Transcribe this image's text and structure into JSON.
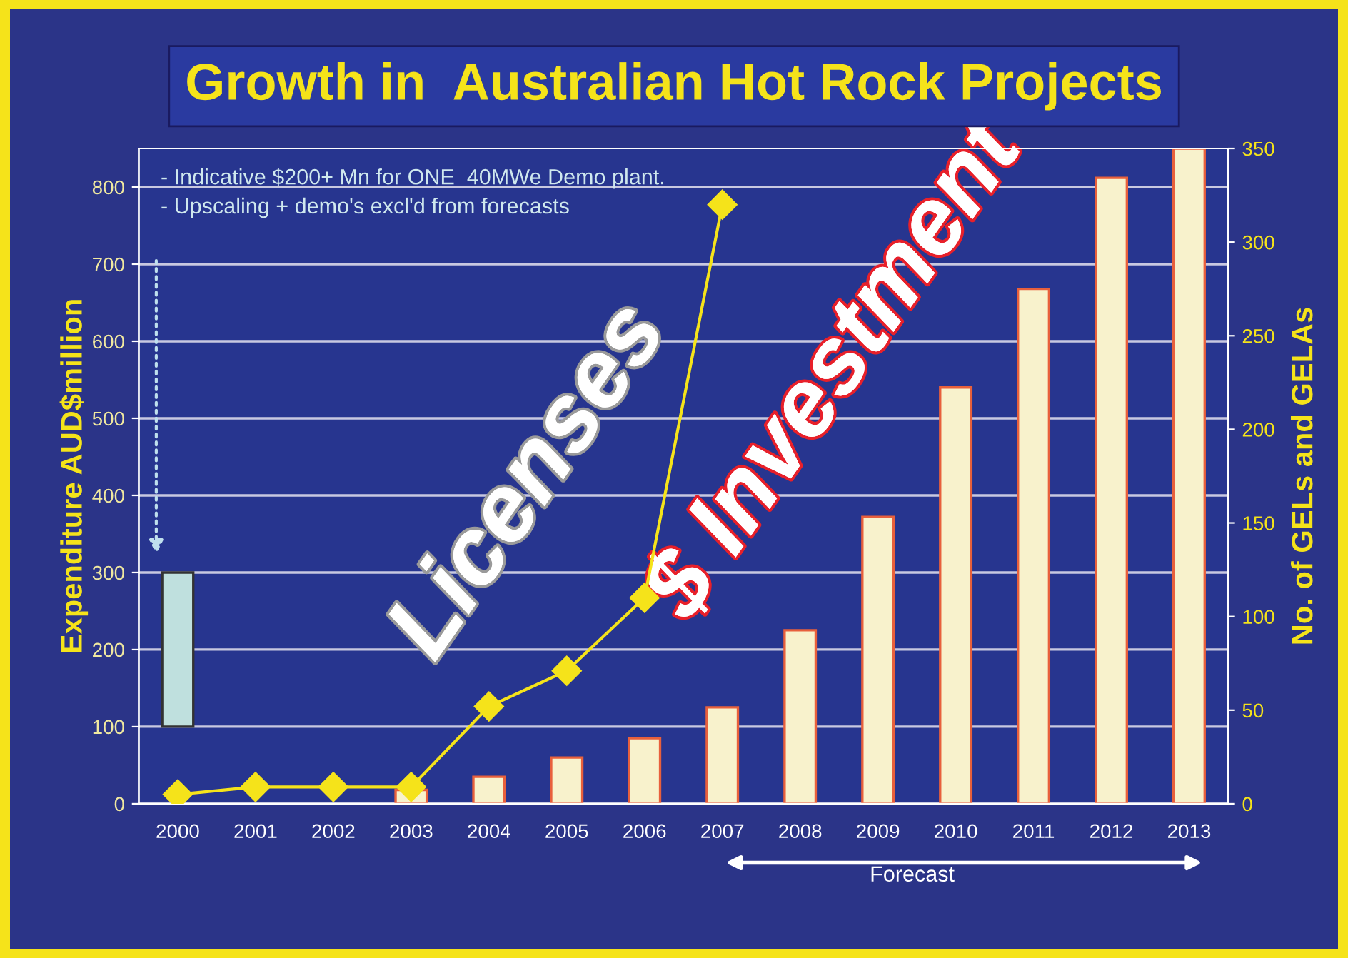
{
  "chart_data": {
    "type": "bar",
    "title": "Growth in  Australian Hot Rock Projects",
    "categories": [
      "2000",
      "2001",
      "2002",
      "2003",
      "2004",
      "2005",
      "2006",
      "2007",
      "2008",
      "2009",
      "2010",
      "2011",
      "2012",
      "2013"
    ],
    "ylabel": "Expenditure AUD$million",
    "y2label": "No. of GELs and GELAs",
    "series": [
      {
        "colors": [
          "#bfe0de",
          "#f8f2cc",
          "#f8f2cc",
          "#f8f2cc",
          "#f8f2cc",
          "#f8f2cc",
          "#f8f2cc",
          "#f8f2cc",
          "#f8f2cc",
          "#f8f2cc",
          "#f8f2cc",
          "#f8f2cc",
          "#f8f2cc",
          "#f8f2cc"
        ],
        "base": [
          100,
          null,
          null,
          0,
          0,
          0,
          0,
          0,
          0,
          0,
          0,
          0,
          0,
          0
        ],
        "values": [
          200,
          null,
          null,
          18,
          35,
          60,
          85,
          125,
          225,
          372,
          540,
          668,
          812,
          850
        ]
      },
      {
        "type": "line",
        "axis": "y2",
        "color": "#f5e31a",
        "marker": "diamond",
        "line_style": "solid",
        "values": [
          5,
          9,
          9,
          9,
          52,
          71,
          110,
          320,
          null,
          null,
          null,
          null,
          null,
          null
        ]
      }
    ],
    "ylim": [
      0,
      850
    ],
    "yticks": [
      0,
      100,
      200,
      300,
      400,
      500,
      600,
      700,
      800
    ],
    "y2lim": [
      0,
      350
    ],
    "y2ticks": [
      0,
      50,
      100,
      150,
      200,
      250,
      300,
      350
    ],
    "grid": "y",
    "legend": false,
    "annotations": [
      "- Indicative $200+ Mn for ONE  40MWe Demo plant.",
      "- Upscaling + demo's excl'd from forecasts",
      "Licenses",
      "$ Investment",
      "Forecast"
    ]
  }
}
